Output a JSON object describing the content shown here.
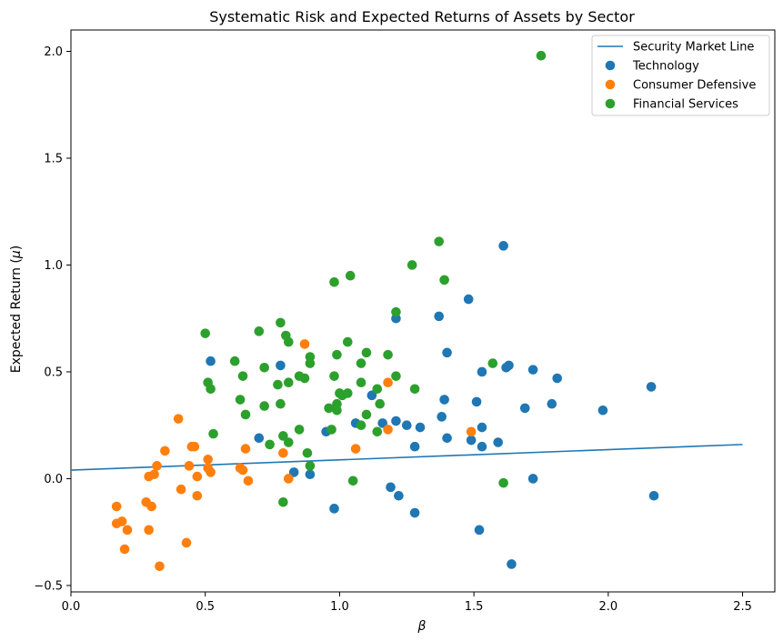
{
  "chart_data": {
    "type": "scatter",
    "title": "Systematic Risk and Expected Returns of Assets by Sector",
    "xlabel": "β",
    "ylabel_prefix": "Expected Return (",
    "ylabel_symbol": "μ",
    "ylabel_suffix": ")",
    "xlim": [
      0.0,
      2.62
    ],
    "ylim": [
      -0.53,
      2.1
    ],
    "xticks": [
      0.0,
      0.5,
      1.0,
      1.5,
      2.0,
      2.5
    ],
    "xtick_labels": [
      "0.0",
      "0.5",
      "1.0",
      "1.5",
      "2.0",
      "2.5"
    ],
    "yticks": [
      -0.5,
      0.0,
      0.5,
      1.0,
      1.5,
      2.0
    ],
    "ytick_labels": [
      "−0.5",
      "0.0",
      "0.5",
      "1.0",
      "1.5",
      "2.0"
    ],
    "legend_position": "top-right",
    "line": {
      "name": "Security Market Line",
      "color": "#1f77b4",
      "x": [
        0.0,
        2.5
      ],
      "y": [
        0.04,
        0.16
      ]
    },
    "series": [
      {
        "name": "Technology",
        "color": "#1f77b4",
        "points": [
          [
            0.52,
            0.55
          ],
          [
            0.78,
            0.53
          ],
          [
            0.7,
            0.19
          ],
          [
            0.83,
            0.03
          ],
          [
            0.89,
            0.02
          ],
          [
            0.95,
            0.22
          ],
          [
            0.98,
            -0.14
          ],
          [
            1.06,
            0.26
          ],
          [
            1.12,
            0.39
          ],
          [
            1.16,
            0.26
          ],
          [
            1.19,
            -0.04
          ],
          [
            1.21,
            0.27
          ],
          [
            1.21,
            0.75
          ],
          [
            1.22,
            -0.08
          ],
          [
            1.25,
            0.25
          ],
          [
            1.28,
            0.15
          ],
          [
            1.28,
            -0.16
          ],
          [
            1.3,
            0.24
          ],
          [
            1.37,
            0.76
          ],
          [
            1.38,
            0.29
          ],
          [
            1.39,
            0.37
          ],
          [
            1.4,
            0.19
          ],
          [
            1.4,
            0.59
          ],
          [
            1.48,
            0.84
          ],
          [
            1.49,
            0.18
          ],
          [
            1.51,
            0.36
          ],
          [
            1.52,
            -0.24
          ],
          [
            1.53,
            0.15
          ],
          [
            1.53,
            0.24
          ],
          [
            1.53,
            0.5
          ],
          [
            1.59,
            0.17
          ],
          [
            1.61,
            1.09
          ],
          [
            1.62,
            0.52
          ],
          [
            1.63,
            0.53
          ],
          [
            1.64,
            -0.4
          ],
          [
            1.69,
            0.33
          ],
          [
            1.72,
            0.51
          ],
          [
            1.72,
            0.0
          ],
          [
            1.79,
            0.35
          ],
          [
            1.81,
            0.47
          ],
          [
            1.98,
            0.32
          ],
          [
            2.16,
            0.43
          ],
          [
            2.17,
            -0.08
          ]
        ]
      },
      {
        "name": "Consumer Defensive",
        "color": "#ff7f0e",
        "points": [
          [
            0.17,
            -0.13
          ],
          [
            0.17,
            -0.21
          ],
          [
            0.19,
            -0.2
          ],
          [
            0.2,
            -0.33
          ],
          [
            0.21,
            -0.24
          ],
          [
            0.28,
            -0.11
          ],
          [
            0.29,
            0.01
          ],
          [
            0.29,
            -0.24
          ],
          [
            0.3,
            -0.13
          ],
          [
            0.31,
            0.02
          ],
          [
            0.32,
            0.06
          ],
          [
            0.33,
            -0.41
          ],
          [
            0.35,
            0.13
          ],
          [
            0.4,
            0.28
          ],
          [
            0.41,
            -0.05
          ],
          [
            0.43,
            -0.3
          ],
          [
            0.44,
            0.06
          ],
          [
            0.45,
            0.15
          ],
          [
            0.46,
            0.15
          ],
          [
            0.47,
            -0.08
          ],
          [
            0.47,
            0.01
          ],
          [
            0.51,
            0.09
          ],
          [
            0.51,
            0.05
          ],
          [
            0.52,
            0.03
          ],
          [
            0.63,
            0.05
          ],
          [
            0.64,
            0.04
          ],
          [
            0.65,
            0.14
          ],
          [
            0.66,
            -0.01
          ],
          [
            0.79,
            0.12
          ],
          [
            0.81,
            0.0
          ],
          [
            0.87,
            0.63
          ],
          [
            1.06,
            0.14
          ],
          [
            1.18,
            0.23
          ],
          [
            1.18,
            0.45
          ],
          [
            1.49,
            0.22
          ]
        ]
      },
      {
        "name": "Financial Services",
        "color": "#2ca02c",
        "points": [
          [
            0.5,
            0.68
          ],
          [
            0.51,
            0.45
          ],
          [
            0.52,
            0.42
          ],
          [
            0.53,
            0.21
          ],
          [
            0.61,
            0.55
          ],
          [
            0.63,
            0.37
          ],
          [
            0.64,
            0.48
          ],
          [
            0.65,
            0.3
          ],
          [
            0.7,
            0.69
          ],
          [
            0.72,
            0.52
          ],
          [
            0.72,
            0.34
          ],
          [
            0.74,
            0.16
          ],
          [
            0.77,
            0.44
          ],
          [
            0.78,
            0.73
          ],
          [
            0.78,
            0.35
          ],
          [
            0.79,
            0.2
          ],
          [
            0.79,
            -0.11
          ],
          [
            0.8,
            0.67
          ],
          [
            0.81,
            0.64
          ],
          [
            0.81,
            0.45
          ],
          [
            0.81,
            0.17
          ],
          [
            0.85,
            0.23
          ],
          [
            0.85,
            0.48
          ],
          [
            0.87,
            0.47
          ],
          [
            0.88,
            0.12
          ],
          [
            0.89,
            0.54
          ],
          [
            0.89,
            0.57
          ],
          [
            0.89,
            0.06
          ],
          [
            0.96,
            0.33
          ],
          [
            0.97,
            0.23
          ],
          [
            0.98,
            0.48
          ],
          [
            0.98,
            0.92
          ],
          [
            0.99,
            0.35
          ],
          [
            0.99,
            0.32
          ],
          [
            0.99,
            0.58
          ],
          [
            1.0,
            0.4
          ],
          [
            1.01,
            0.39
          ],
          [
            1.03,
            0.64
          ],
          [
            1.03,
            0.4
          ],
          [
            1.04,
            0.95
          ],
          [
            1.05,
            -0.01
          ],
          [
            1.08,
            0.45
          ],
          [
            1.08,
            0.54
          ],
          [
            1.08,
            0.25
          ],
          [
            1.1,
            0.59
          ],
          [
            1.1,
            0.3
          ],
          [
            1.14,
            0.22
          ],
          [
            1.14,
            0.42
          ],
          [
            1.15,
            0.35
          ],
          [
            1.18,
            0.58
          ],
          [
            1.21,
            0.78
          ],
          [
            1.21,
            0.48
          ],
          [
            1.27,
            1.0
          ],
          [
            1.28,
            0.42
          ],
          [
            1.37,
            1.11
          ],
          [
            1.39,
            0.93
          ],
          [
            1.57,
            0.54
          ],
          [
            1.61,
            -0.02
          ],
          [
            1.75,
            1.98
          ]
        ]
      }
    ]
  }
}
